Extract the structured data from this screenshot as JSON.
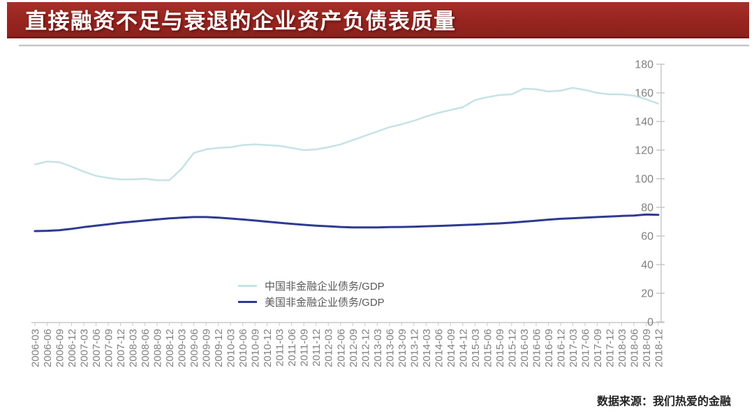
{
  "header": {
    "title": "直接融资不足与衰退的企业资产负债表质量"
  },
  "footer": {
    "source": "数据来源：我们热爱的金融"
  },
  "theme": {
    "banner_red": "#97241f",
    "banner_border": "#7c1a16",
    "divider_gray": "#c2c2c2",
    "background": "#ffffff"
  },
  "chart_data": {
    "type": "line",
    "title": "",
    "xlabel": "",
    "ylabel": "",
    "ylim": [
      0,
      180
    ],
    "ytick_step": 20,
    "grid": false,
    "legend_position": "inside-bottom-center",
    "y_axis_side": "right",
    "x_label_rotation": -90,
    "style": {
      "axis_color": "#c9c9c9",
      "tick_label_color": "#808080",
      "y_tick_font_size": 16,
      "x_tick_font_size": 15
    },
    "x": [
      "2006-03",
      "2006-06",
      "2006-09",
      "2006-12",
      "2007-03",
      "2007-06",
      "2007-09",
      "2007-12",
      "2008-03",
      "2008-06",
      "2008-09",
      "2008-12",
      "2009-03",
      "2009-06",
      "2009-09",
      "2009-12",
      "2010-03",
      "2010-06",
      "2010-09",
      "2010-12",
      "2011-03",
      "2011-06",
      "2011-09",
      "2011-12",
      "2012-03",
      "2012-06",
      "2012-09",
      "2012-12",
      "2013-03",
      "2013-06",
      "2013-09",
      "2013-12",
      "2014-03",
      "2014-06",
      "2014-09",
      "2014-12",
      "2015-03",
      "2015-06",
      "2015-09",
      "2015-12",
      "2016-03",
      "2016-06",
      "2016-09",
      "2016-12",
      "2017-03",
      "2017-06",
      "2017-09",
      "2017-12",
      "2018-03",
      "2018-06",
      "2018-09",
      "2018-12"
    ],
    "series": [
      {
        "name": "中国非金融企业债务/GDP",
        "color": "#c6e2e6",
        "stroke_width": 2.5,
        "values": [
          110,
          112,
          111.5,
          108.5,
          105,
          102,
          100.5,
          99.5,
          99.5,
          100,
          99,
          99,
          107,
          118,
          120.5,
          121.5,
          122,
          123.5,
          124,
          123.5,
          123,
          121.5,
          120,
          120.5,
          122,
          124,
          127,
          130,
          133,
          136,
          138,
          140.5,
          143.5,
          146,
          148,
          150,
          155,
          157,
          158.5,
          159,
          163,
          162.5,
          161,
          161.5,
          163.5,
          162,
          160,
          159,
          159,
          158,
          155.5,
          152.5
        ]
      },
      {
        "name": "美国非金融企业债务/GDP",
        "color": "#2e3a90",
        "stroke_width": 3,
        "values": [
          63.4,
          63.6,
          64,
          65,
          66.2,
          67.2,
          68.2,
          69.2,
          70,
          70.8,
          71.6,
          72.3,
          72.8,
          73.2,
          73.2,
          72.8,
          72.2,
          71.5,
          70.8,
          70,
          69.2,
          68.5,
          67.8,
          67.2,
          66.8,
          66.3,
          66,
          66,
          66,
          66.2,
          66.3,
          66.5,
          66.8,
          67,
          67.3,
          67.7,
          68,
          68.4,
          68.8,
          69.3,
          70,
          70.7,
          71.4,
          72,
          72.4,
          72.8,
          73.2,
          73.6,
          74,
          74.3,
          75,
          74.8
        ]
      }
    ]
  }
}
